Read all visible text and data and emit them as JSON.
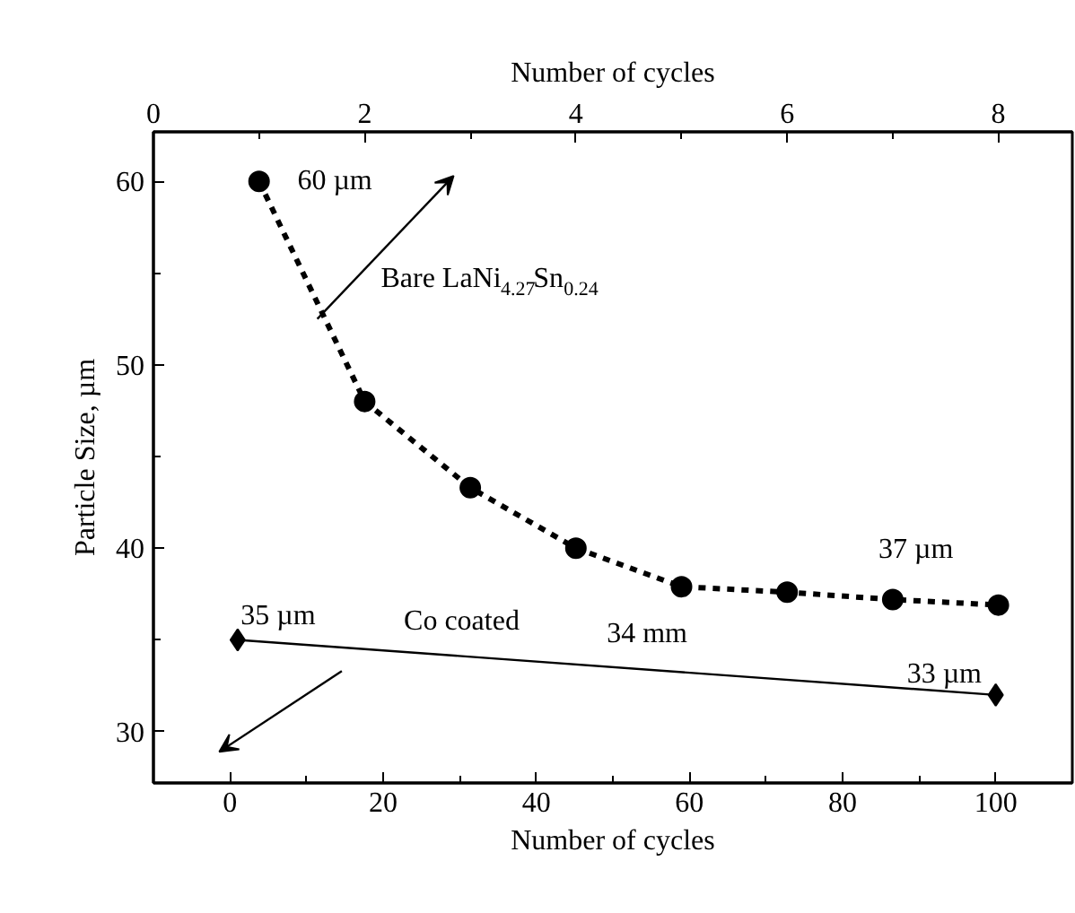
{
  "chart_data": {
    "type": "line",
    "xlabel": "Number of cycles",
    "x2label": "Number of cycles",
    "ylabel": "Particle Size, µm",
    "xlim": [
      -10,
      110
    ],
    "xticks": [
      0,
      {
        "value": 10,
        "label": null
      },
      20,
      {
        "value": 30,
        "label": null
      },
      40,
      {
        "value": 50,
        "label": null
      },
      60,
      {
        "value": 70,
        "label": null
      },
      80,
      {
        "value": 90,
        "label": null
      },
      100
    ],
    "x2lim": [
      0,
      8.7
    ],
    "x2ticks": [
      0,
      {
        "value": 1,
        "label": null
      },
      2,
      {
        "value": 3,
        "label": null
      },
      4,
      {
        "value": 5,
        "label": null
      },
      6,
      {
        "value": 7,
        "label": null
      },
      8
    ],
    "ylim": [
      27.2,
      62.7
    ],
    "yticks": [
      30,
      {
        "value": 35,
        "label": null
      },
      40,
      {
        "value": 45,
        "label": null
      },
      50,
      {
        "value": 55,
        "label": null
      },
      60
    ],
    "grid": false,
    "series": [
      {
        "axis": "x2",
        "x": [
          1,
          2,
          3,
          4,
          5,
          6,
          7,
          8
        ],
        "values": [
          60,
          48,
          43.3,
          40,
          37.9,
          37.6,
          37.2,
          36.9
        ],
        "color": "#000000",
        "marker": "circle",
        "line_style": "dotted"
      },
      {
        "x": [
          1,
          100
        ],
        "values": [
          35,
          32
        ],
        "color": "#000000",
        "marker": "diamond",
        "line_style": "solid"
      }
    ],
    "annotations": [
      "60 µm",
      "Bare LaNi$_{4.27}$Sn$_{0.24}$",
      "37 µm",
      "35 µm",
      "Co coated",
      "34 mm",
      "33 µm"
    ]
  }
}
